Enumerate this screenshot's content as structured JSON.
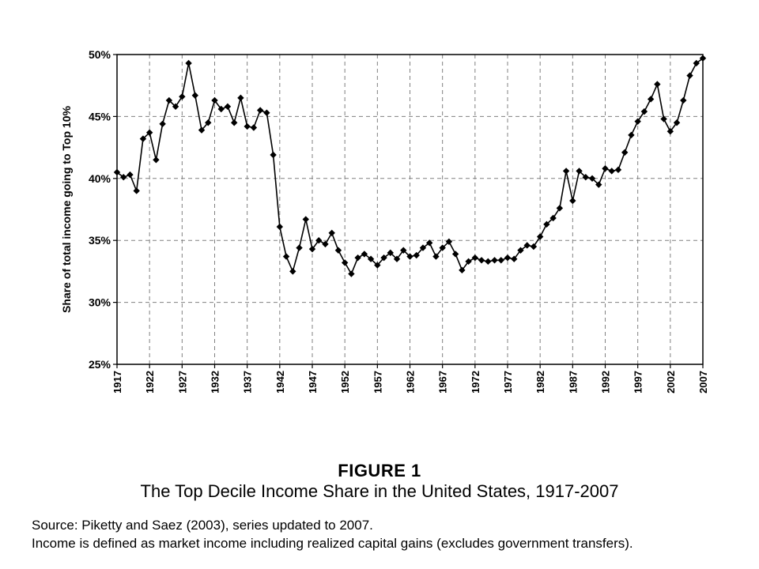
{
  "chart_data": {
    "type": "line",
    "ylabel": "Share of total income going to Top 10%",
    "xlabel": "",
    "ylim": [
      25,
      50
    ],
    "y_ticks": [
      "25%",
      "30%",
      "35%",
      "40%",
      "45%",
      "50%"
    ],
    "y_tick_values": [
      25,
      30,
      35,
      40,
      45,
      50
    ],
    "x_ticks": [
      "1917",
      "1922",
      "1927",
      "1932",
      "1937",
      "1942",
      "1947",
      "1952",
      "1957",
      "1962",
      "1967",
      "1972",
      "1977",
      "1982",
      "1987",
      "1992",
      "1997",
      "2002",
      "2007"
    ],
    "x_tick_values": [
      1917,
      1922,
      1927,
      1932,
      1937,
      1942,
      1947,
      1952,
      1957,
      1962,
      1967,
      1972,
      1977,
      1982,
      1987,
      1992,
      1997,
      2002,
      2007
    ],
    "xlim": [
      1917,
      2007
    ],
    "grid": true,
    "marker": "diamond",
    "series_color": "#000000",
    "x": [
      1917,
      1918,
      1919,
      1920,
      1921,
      1922,
      1923,
      1924,
      1925,
      1926,
      1927,
      1928,
      1929,
      1930,
      1931,
      1932,
      1933,
      1934,
      1935,
      1936,
      1937,
      1938,
      1939,
      1940,
      1941,
      1942,
      1943,
      1944,
      1945,
      1946,
      1947,
      1948,
      1949,
      1950,
      1951,
      1952,
      1953,
      1954,
      1955,
      1956,
      1957,
      1958,
      1959,
      1960,
      1961,
      1962,
      1963,
      1964,
      1965,
      1966,
      1967,
      1968,
      1969,
      1970,
      1971,
      1972,
      1973,
      1974,
      1975,
      1976,
      1977,
      1978,
      1979,
      1980,
      1981,
      1982,
      1983,
      1984,
      1985,
      1986,
      1987,
      1988,
      1989,
      1990,
      1991,
      1992,
      1993,
      1994,
      1995,
      1996,
      1997,
      1998,
      1999,
      2000,
      2001,
      2002,
      2003,
      2004,
      2005,
      2006,
      2007
    ],
    "values": [
      40.5,
      40.1,
      40.3,
      39.0,
      43.2,
      43.7,
      41.5,
      44.4,
      46.3,
      45.8,
      46.6,
      49.3,
      46.7,
      43.9,
      44.5,
      46.3,
      45.6,
      45.8,
      44.5,
      46.5,
      44.2,
      44.1,
      45.5,
      45.3,
      41.9,
      36.1,
      33.7,
      32.5,
      34.4,
      36.7,
      34.3,
      35.0,
      34.7,
      35.6,
      34.2,
      33.2,
      32.3,
      33.6,
      33.9,
      33.5,
      33.0,
      33.6,
      34.0,
      33.5,
      34.2,
      33.7,
      33.8,
      34.4,
      34.8,
      33.7,
      34.4,
      34.9,
      33.9,
      32.6,
      33.3,
      33.6,
      33.4,
      33.3,
      33.4,
      33.4,
      33.6,
      33.5,
      34.2,
      34.6,
      34.5,
      35.3,
      36.3,
      36.8,
      37.6,
      40.6,
      38.2,
      40.6,
      40.1,
      40.0,
      39.5,
      40.8,
      40.6,
      40.7,
      42.1,
      43.5,
      44.6,
      45.4,
      46.4,
      47.6,
      44.8,
      43.8,
      44.5,
      46.3,
      48.3,
      49.3,
      49.7
    ]
  },
  "figure": {
    "number": "FIGURE 1",
    "title": "The Top Decile Income Share in the United States, 1917-2007"
  },
  "notes": {
    "source": "Source: Piketty and Saez (2003), series updated to 2007.",
    "income_definition": "Income is defined as market income including realized capital gains (excludes government transfers)."
  }
}
